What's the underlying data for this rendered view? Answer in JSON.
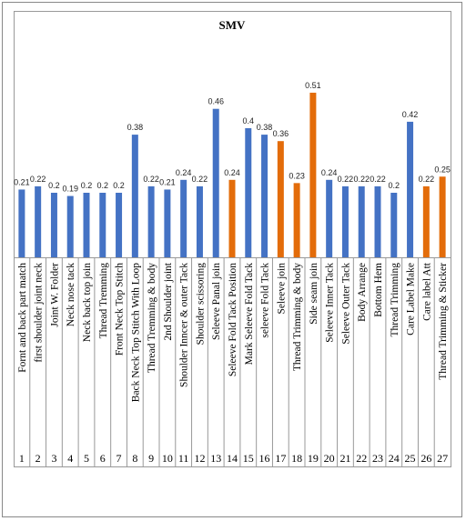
{
  "chart_data": {
    "type": "bar",
    "title": "SMV",
    "categories": [
      "Fornt and back part match",
      "first shoulder joint neck",
      "Joint W. Folder",
      "Neck nose tack",
      "Neck back top join",
      "Thread Tremming",
      "Front Neck Top Stitch",
      "Back Neck Top Stitch With Loop",
      "Thread Tremming & body",
      "2nd Shoulder joint",
      "Shoulder Inncer & outer Tack",
      "Shoulder scissoring",
      "Seleeve Panal join",
      "Seleeve Fold Tack Position",
      "Mark Seleeve Fold Tack",
      "seleeve Fold Tack",
      "Seleeve join",
      "Thread Trimming & body",
      "Side seam join",
      "Seleeve Inner Tack",
      "Seleeve Outer Tack",
      "Body Arrange",
      "Bottom Hem",
      "Thread Trimming",
      "Care Label Make",
      "Care label  Att",
      "Thread Trimming & Sticker"
    ],
    "index_labels": [
      "1",
      "2",
      "3",
      "4",
      "5",
      "6",
      "7",
      "8",
      "9",
      "10",
      "11",
      "12",
      "13",
      "14",
      "15",
      "16",
      "17",
      "18",
      "19",
      "20",
      "21",
      "22",
      "23",
      "24",
      "25",
      "26",
      "27"
    ],
    "values": [
      0.21,
      0.22,
      0.2,
      0.19,
      0.2,
      0.2,
      0.2,
      0.38,
      0.22,
      0.21,
      0.24,
      0.22,
      0.46,
      0.24,
      0.4,
      0.38,
      0.36,
      0.23,
      0.51,
      0.24,
      0.22,
      0.22,
      0.22,
      0.2,
      0.42,
      0.22,
      0.25
    ],
    "colors": [
      "#4472c4",
      "#4472c4",
      "#4472c4",
      "#4472c4",
      "#4472c4",
      "#4472c4",
      "#4472c4",
      "#4472c4",
      "#4472c4",
      "#4472c4",
      "#4472c4",
      "#4472c4",
      "#4472c4",
      "#e36c0a",
      "#4472c4",
      "#4472c4",
      "#e36c0a",
      "#e36c0a",
      "#e36c0a",
      "#4472c4",
      "#4472c4",
      "#4472c4",
      "#4472c4",
      "#4472c4",
      "#4472c4",
      "#e36c0a",
      "#e36c0a"
    ]
  }
}
